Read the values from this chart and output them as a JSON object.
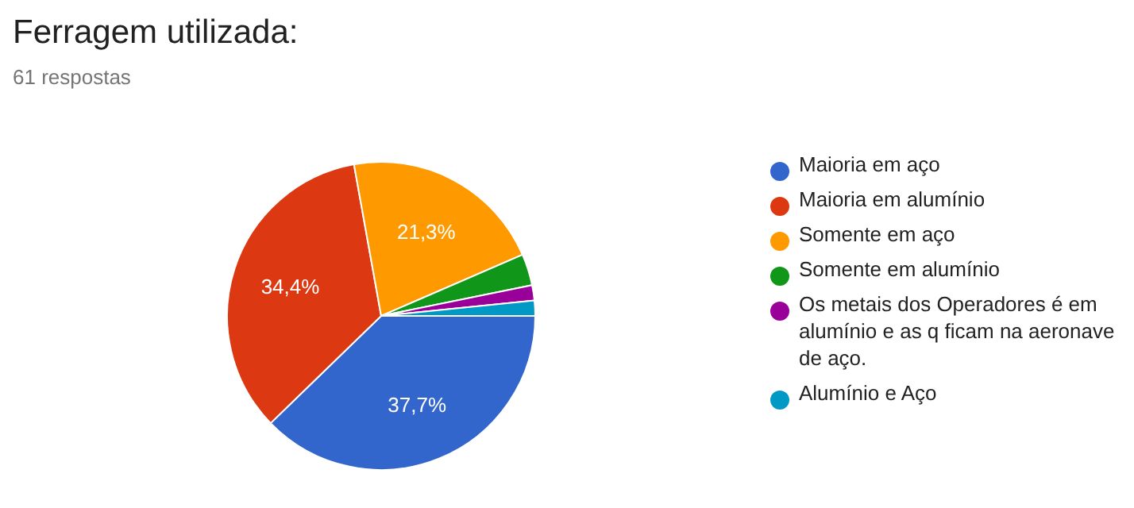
{
  "chart_data": {
    "type": "pie",
    "title": "Ferragem utilizada:",
    "subtitle": "61 respostas",
    "categories": [
      "Maioria em aço",
      "Maioria em alumínio",
      "Somente em aço",
      "Somente em alumínio",
      "Os metais dos Operadores é em alumínio e as q ficam na aeronave de aço.",
      "Alumínio e Aço"
    ],
    "values": [
      37.7,
      34.4,
      21.3,
      3.3,
      1.6,
      1.6
    ],
    "value_labels": [
      "37,7%",
      "34,4%",
      "21,3%",
      null,
      null,
      null
    ],
    "colors": [
      "#3366cc",
      "#dc3912",
      "#ff9900",
      "#109618",
      "#990099",
      "#0099c6"
    ],
    "legend": "right"
  }
}
